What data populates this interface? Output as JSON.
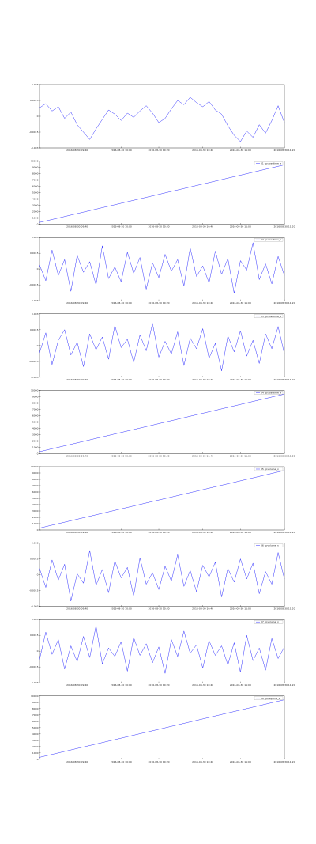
{
  "chart_data": [
    {
      "type": "line",
      "xlim": [
        0,
        39
      ],
      "ylim": [
        -0.003,
        0.003
      ],
      "yticks": [
        -0.003,
        -0.0015,
        0,
        0.0015,
        0.003
      ],
      "xticks": [
        {
          "value": 6,
          "label": "2016-08-30 09:40"
        },
        {
          "value": 13,
          "label": "2016-08-30 10:00"
        },
        {
          "value": 19,
          "label": "2016-08-30 10:20"
        },
        {
          "value": 26,
          "label": "2016-08-30 10:40"
        },
        {
          "value": 32,
          "label": "2016-08-30 11:00"
        },
        {
          "value": 39,
          "label": "2016-08-30 11:20"
        }
      ],
      "series": [
        {
          "color": "#0000ff",
          "values": [
            0.0008,
            0.0012,
            0.0005,
            0.0009,
            -0.0002,
            0.0004,
            -0.0008,
            -0.0015,
            -0.0022,
            -0.0012,
            -0.0003,
            0.0006,
            0.0002,
            -0.0004,
            0.0003,
            -0.0001,
            0.0005,
            0.001,
            0.0003,
            -0.0006,
            -0.0002,
            0.0007,
            0.0015,
            0.0011,
            0.0018,
            0.0013,
            0.0009,
            0.0014,
            0.0006,
            0.0002,
            -0.0009,
            -0.0018,
            -0.0024,
            -0.0014,
            -0.002,
            -0.0008,
            -0.0016,
            -0.0004,
            0.001,
            -0.0006
          ]
        }
      ]
    },
    {
      "type": "line",
      "xlim": [
        0,
        39
      ],
      "ylim": [
        0,
        10000
      ],
      "yticks": [
        0,
        1000,
        2000,
        3000,
        4000,
        5000,
        6000,
        7000,
        8000,
        9000,
        10000
      ],
      "xticks": [
        {
          "value": 6,
          "label": "2016-08-30 09:40"
        },
        {
          "value": 13,
          "label": "2016-08-30 10:00"
        },
        {
          "value": 19,
          "label": "2016-08-30 10:20"
        },
        {
          "value": 26,
          "label": "2016-08-30 10:40"
        },
        {
          "value": 32,
          "label": "2016-08-30 11:00"
        },
        {
          "value": 39,
          "label": "2016-08-30 11:20"
        }
      ],
      "series": [
        {
          "name": "01 cpclosetime_x",
          "color": "#0000ff",
          "x": [
            0,
            39
          ],
          "values": [
            300,
            9400
          ]
        }
      ]
    },
    {
      "type": "line",
      "xlim": [
        0,
        39
      ],
      "ylim": [
        -0.003,
        0.003
      ],
      "yticks": [
        -0.003,
        -0.0015,
        0,
        0.0015,
        0.003
      ],
      "xticks": [
        {
          "value": 6,
          "label": "2016-08-30 09:40"
        },
        {
          "value": 13,
          "label": "2016-08-30 10:00"
        },
        {
          "value": 19,
          "label": "2016-08-30 10:20"
        },
        {
          "value": 26,
          "label": "2016-08-30 10:40"
        },
        {
          "value": 32,
          "label": "2016-08-30 11:00"
        },
        {
          "value": 39,
          "label": "2016-08-30 11:20"
        }
      ],
      "series": [
        {
          "name": "02 cpclosetime_x",
          "color": "#0000ff",
          "values": [
            0.0004,
            -0.0011,
            0.0018,
            -0.0006,
            0.0009,
            -0.0021,
            0.0013,
            -0.0003,
            0.0007,
            -0.0015,
            0.0022,
            -0.0009,
            0.0002,
            -0.0012,
            0.0016,
            -0.0004,
            0.0011,
            -0.0019,
            0.0006,
            -0.0008,
            0.0014,
            -0.0002,
            0.0009,
            -0.0016,
            0.002,
            -0.0007,
            0.0003,
            -0.0013,
            0.0017,
            -0.0005,
            0.001,
            -0.0023,
            0.0008,
            -0.0001,
            0.0025,
            -0.001,
            0.0005,
            -0.0014,
            0.0012,
            -0.0006
          ]
        }
      ]
    },
    {
      "type": "line",
      "xlim": [
        0,
        39
      ],
      "ylim": [
        -0.003,
        0.003
      ],
      "yticks": [
        -0.003,
        -0.0015,
        0,
        0.0015,
        0.003
      ],
      "xticks": [
        {
          "value": 6,
          "label": "2016-08-30 09:40"
        },
        {
          "value": 13,
          "label": "2016-08-30 10:00"
        },
        {
          "value": 19,
          "label": "2016-08-30 10:20"
        },
        {
          "value": 26,
          "label": "2016-08-30 10:40"
        },
        {
          "value": 32,
          "label": "2016-08-30 11:00"
        },
        {
          "value": 39,
          "label": "2016-08-30 11:20"
        }
      ],
      "series": [
        {
          "name": "03 cpclosetime_x",
          "color": "#0000ff",
          "values": [
            -0.0007,
            0.0012,
            -0.0018,
            0.0005,
            0.0015,
            -0.0009,
            0.0003,
            -0.002,
            0.0011,
            -0.0004,
            0.0008,
            -0.0013,
            0.0019,
            -0.0002,
            0.0006,
            -0.0016,
            0.001,
            -0.0005,
            0.0021,
            -0.0011,
            0.0004,
            -0.0008,
            0.0013,
            -0.0019,
            0.0007,
            -0.0003,
            0.0016,
            -0.0012,
            0.0002,
            -0.0024,
            0.0009,
            -0.0006,
            0.0014,
            -0.001,
            0.0005,
            -0.0017,
            0.0011,
            -0.0003,
            0.0018,
            -0.0008
          ]
        }
      ]
    },
    {
      "type": "line",
      "xlim": [
        0,
        39
      ],
      "ylim": [
        0,
        10000
      ],
      "yticks": [
        0,
        1000,
        2000,
        3000,
        4000,
        5000,
        6000,
        7000,
        8000,
        9000,
        10000
      ],
      "xticks": [
        {
          "value": 6,
          "label": "2016-08-30 09:40"
        },
        {
          "value": 13,
          "label": "2016-08-30 10:00"
        },
        {
          "value": 19,
          "label": "2016-08-30 10:20"
        },
        {
          "value": 26,
          "label": "2016-08-30 10:40"
        },
        {
          "value": 32,
          "label": "2016-08-30 11:00"
        },
        {
          "value": 39,
          "label": "2016-08-30 11:20"
        }
      ],
      "series": [
        {
          "name": "04 cpclosetime_x",
          "color": "#0000ff",
          "x": [
            0,
            39
          ],
          "values": [
            300,
            9400
          ]
        }
      ]
    },
    {
      "type": "line",
      "xlim": [
        0,
        39
      ],
      "ylim": [
        0,
        10000
      ],
      "yticks": [
        0,
        1000,
        2000,
        3000,
        4000,
        5000,
        6000,
        7000,
        8000,
        9000,
        10000
      ],
      "xticks": [
        {
          "value": 6,
          "label": "2016-08-30 09:40"
        },
        {
          "value": 13,
          "label": "2016-08-30 10:00"
        },
        {
          "value": 19,
          "label": "2016-08-30 10:20"
        },
        {
          "value": 26,
          "label": "2016-08-30 10:40"
        },
        {
          "value": 32,
          "label": "2016-08-30 11:00"
        },
        {
          "value": 39,
          "label": "2016-08-30 11:20"
        }
      ],
      "series": [
        {
          "name": "05 cpvolume_x",
          "color": "#0000ff",
          "x": [
            0,
            39
          ],
          "values": [
            300,
            9400
          ]
        }
      ]
    },
    {
      "type": "line",
      "xlim": [
        0,
        39
      ],
      "ylim": [
        -0.003,
        0.003
      ],
      "yticks": [
        -0.003,
        -0.0015,
        0,
        0.0015,
        0.003
      ],
      "xticks": [
        {
          "value": 6,
          "label": "2016-08-30 09:40"
        },
        {
          "value": 13,
          "label": "2016-08-30 10:00"
        },
        {
          "value": 19,
          "label": "2016-08-30 10:20"
        },
        {
          "value": 26,
          "label": "2016-08-30 10:40"
        },
        {
          "value": 32,
          "label": "2016-08-30 11:00"
        },
        {
          "value": 39,
          "label": "2016-08-30 11:20"
        }
      ],
      "series": [
        {
          "name": "06 cpvolume_x",
          "color": "#0000ff",
          "values": [
            0.0006,
            -0.0012,
            0.0014,
            -0.0005,
            0.001,
            -0.0025,
            0.0001,
            -0.0008,
            0.0023,
            -0.001,
            0.0005,
            -0.0017,
            0.0013,
            -0.0003,
            0.0007,
            -0.002,
            0.0016,
            -0.0009,
            0.0002,
            -0.0014,
            0.0008,
            -0.0006,
            0.0019,
            -0.0011,
            0.0004,
            -0.0016,
            0.0009,
            -0.0002,
            0.0012,
            -0.0021,
            0.0006,
            -0.0007,
            0.0015,
            -0.0004,
            0.0011,
            -0.0018,
            0.0003,
            -0.0009,
            0.0021,
            -0.0004
          ]
        }
      ]
    },
    {
      "type": "line",
      "xlim": [
        0,
        39
      ],
      "ylim": [
        -0.003,
        0.003
      ],
      "yticks": [
        -0.003,
        -0.0015,
        0,
        0.0015,
        0.003
      ],
      "xticks": [
        {
          "value": 6,
          "label": "2016-08-30 09:40"
        },
        {
          "value": 13,
          "label": "2016-08-30 10:00"
        },
        {
          "value": 19,
          "label": "2016-08-30 10:20"
        },
        {
          "value": 26,
          "label": "2016-08-30 10:40"
        },
        {
          "value": 32,
          "label": "2016-08-30 11:00"
        },
        {
          "value": 39,
          "label": "2016-08-30 11:20"
        }
      ],
      "series": [
        {
          "name": "07 cpvolume_x",
          "color": "#0000ff",
          "values": [
            -0.0008,
            0.0018,
            -0.0003,
            0.0011,
            -0.0017,
            0.0005,
            -0.001,
            0.0014,
            -0.0006,
            0.0024,
            -0.0012,
            0.0003,
            -0.0005,
            0.0009,
            -0.0019,
            0.0013,
            -0.0004,
            0.0007,
            -0.0011,
            0.0004,
            -0.0021,
            0.0011,
            -0.0005,
            0.0019,
            -0.0002,
            0.0006,
            -0.0016,
            0.001,
            -0.0004,
            0.0005,
            -0.0013,
            0.0008,
            -0.002,
            0.0015,
            -0.0009,
            0.0003,
            -0.0018,
            0.0012,
            -0.0007,
            0.0004
          ]
        }
      ]
    },
    {
      "type": "line",
      "xlim": [
        0,
        39
      ],
      "ylim": [
        0,
        10000
      ],
      "yticks": [
        0,
        1000,
        2000,
        3000,
        4000,
        5000,
        6000,
        7000,
        8000,
        9000,
        10000
      ],
      "xticks": [
        {
          "value": 6,
          "label": "2016-08-30 09:40"
        },
        {
          "value": 13,
          "label": "2016-08-30 10:00"
        },
        {
          "value": 19,
          "label": "2016-08-30 10:20"
        },
        {
          "value": 26,
          "label": "2016-08-30 10:40"
        },
        {
          "value": 32,
          "label": "2016-08-30 11:00"
        },
        {
          "value": 39,
          "label": "2016-08-30 11:20"
        }
      ],
      "series": [
        {
          "name": "08 cpfreqtime_x",
          "color": "#0000ff",
          "x": [
            0,
            39
          ],
          "values": [
            300,
            9400
          ]
        }
      ]
    }
  ]
}
